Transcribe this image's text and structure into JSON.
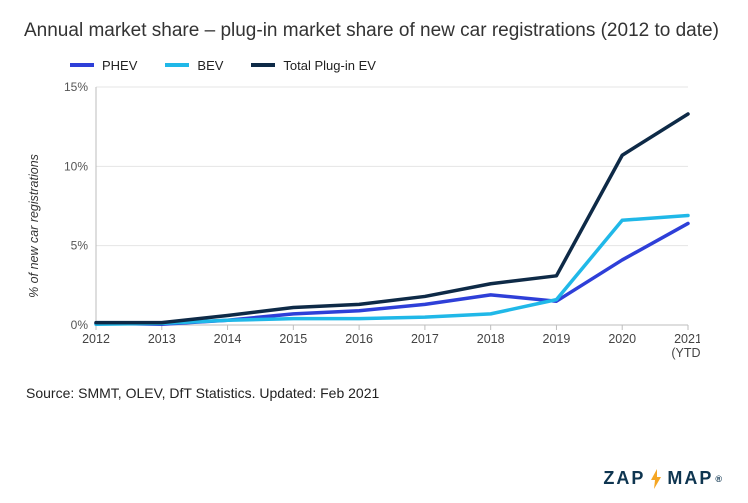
{
  "chart": {
    "type": "line",
    "title": "Annual market share – plug-in market share of new car registrations (2012 to date)",
    "ylabel": "% of new car registrations",
    "categories": [
      "2012",
      "2013",
      "2014",
      "2015",
      "2016",
      "2017",
      "2018",
      "2019",
      "2020",
      "2021\n(YTD)"
    ],
    "series": [
      {
        "name": "PHEV",
        "color": "#2e3fd8",
        "values": [
          0.1,
          0.05,
          0.3,
          0.7,
          0.9,
          1.3,
          1.9,
          1.5,
          4.1,
          6.4
        ]
      },
      {
        "name": "BEV",
        "color": "#20b8e8",
        "values": [
          0.05,
          0.1,
          0.3,
          0.4,
          0.4,
          0.5,
          0.7,
          1.6,
          6.6,
          6.9
        ]
      },
      {
        "name": "Total Plug-in EV",
        "color": "#0e2a47",
        "values": [
          0.15,
          0.15,
          0.6,
          1.1,
          1.3,
          1.8,
          2.6,
          3.1,
          10.7,
          13.3
        ]
      }
    ],
    "ylim": [
      0,
      15
    ],
    "ytick_step": 5,
    "background_color": "#ffffff",
    "grid_color": "#e5e5e5",
    "axis_color": "#bdbdbd",
    "line_width": 3.5,
    "tick_fontsize": 12,
    "label_fontsize": 12.5
  },
  "source_line": "Source: SMMT, OLEV, DfT Statistics. Updated: Feb 2021",
  "logo": {
    "left": "ZAP",
    "right": "MAP",
    "bolt_color": "#f5a623",
    "text_color": "#0e3550"
  }
}
